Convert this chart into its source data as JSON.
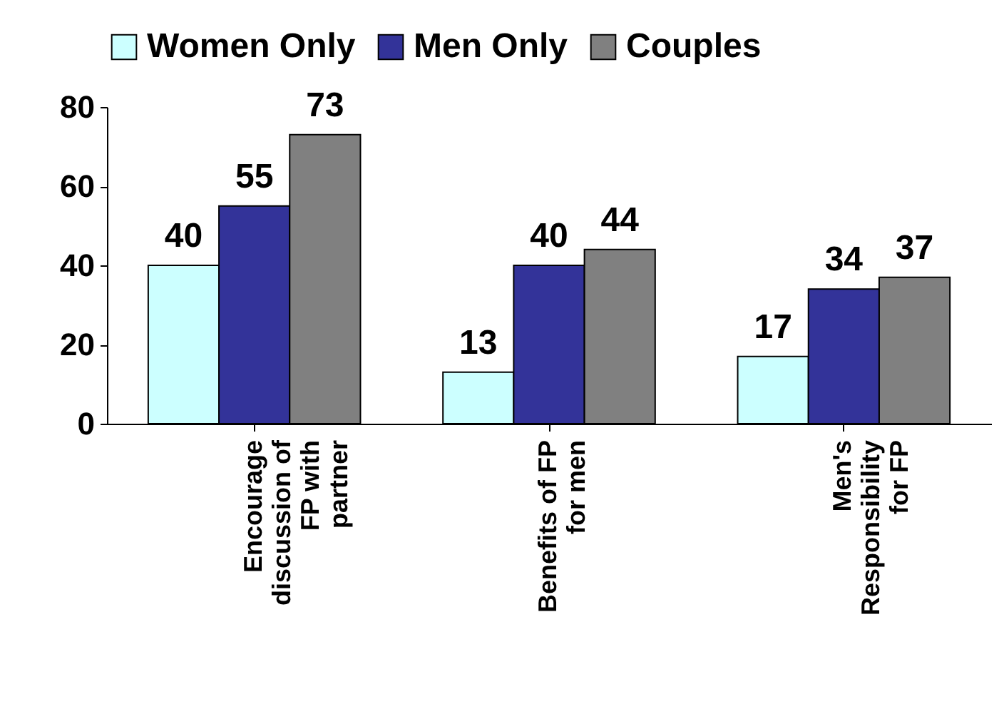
{
  "chart_data": {
    "type": "bar",
    "categories": [
      "Encourage\ndiscussion of\nFP with\npartner",
      "Benefits of FP\nfor men",
      "Men's\nResponsibility\nfor FP"
    ],
    "series": [
      {
        "name": "Women Only",
        "color": "#ccffff",
        "values": [
          40,
          13,
          17
        ]
      },
      {
        "name": "Men Only",
        "color": "#333399",
        "values": [
          55,
          40,
          34
        ]
      },
      {
        "name": "Couples",
        "color": "#808080",
        "values": [
          73,
          44,
          37
        ]
      }
    ],
    "ylim": [
      0,
      80
    ],
    "yticks": [
      0,
      20,
      40,
      60,
      80
    ],
    "data_labels": true,
    "legend": "top",
    "grid": false
  }
}
